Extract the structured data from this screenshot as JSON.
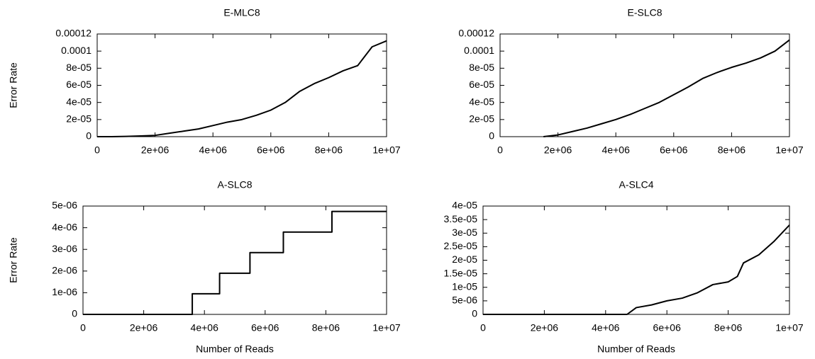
{
  "chart_data": [
    {
      "type": "line",
      "title": "E-MLC8",
      "ylabel": "Error Rate",
      "color": "#000000",
      "x": [
        0,
        500000,
        1000000,
        1500000,
        2000000,
        2500000,
        3000000,
        3500000,
        4000000,
        4500000,
        5000000,
        5500000,
        6000000,
        6500000,
        7000000,
        7500000,
        8000000,
        8500000,
        9000000,
        9500000,
        10000000
      ],
      "values": [
        0,
        0,
        3e-07,
        8e-07,
        1.5e-06,
        4e-06,
        6.5e-06,
        9e-06,
        1.3e-05,
        1.7e-05,
        2e-05,
        2.5e-05,
        3.1e-05,
        4e-05,
        5.3e-05,
        6.2e-05,
        6.9e-05,
        7.7e-05,
        8.3e-05,
        0.000105,
        0.000112
      ],
      "xlim": [
        0,
        10000000
      ],
      "ylim": [
        0,
        0.00012
      ],
      "xticks": [
        0,
        {
          "value": 2000000,
          "label": "2e+06"
        },
        {
          "value": 4000000,
          "label": "4e+06"
        },
        {
          "value": 6000000,
          "label": "6e+06"
        },
        {
          "value": 8000000,
          "label": "8e+06"
        },
        {
          "value": 10000000,
          "label": "1e+07"
        }
      ],
      "yticks": [
        0,
        {
          "value": 2e-05,
          "label": "2e-05"
        },
        {
          "value": 4e-05,
          "label": "4e-05"
        },
        {
          "value": 6e-05,
          "label": "6e-05"
        },
        {
          "value": 8e-05,
          "label": "8e-05"
        },
        0.0001,
        0.00012
      ]
    },
    {
      "type": "line",
      "title": "E-SLC8",
      "color": "#000000",
      "x": [
        1500000,
        2000000,
        2500000,
        3000000,
        3500000,
        4000000,
        4500000,
        5000000,
        5500000,
        6000000,
        6500000,
        7000000,
        7500000,
        8000000,
        8500000,
        9000000,
        9500000,
        10000000
      ],
      "values": [
        0,
        2e-06,
        6e-06,
        1e-05,
        1.5e-05,
        2e-05,
        2.6e-05,
        3.3e-05,
        4e-05,
        4.9e-05,
        5.8e-05,
        6.8e-05,
        7.5e-05,
        8.1e-05,
        8.6e-05,
        9.2e-05,
        0.0001,
        0.000113
      ],
      "xlim": [
        0,
        10000000
      ],
      "ylim": [
        0,
        0.00012
      ],
      "xticks": [
        0,
        {
          "value": 2000000,
          "label": "2e+06"
        },
        {
          "value": 4000000,
          "label": "4e+06"
        },
        {
          "value": 6000000,
          "label": "6e+06"
        },
        {
          "value": 8000000,
          "label": "8e+06"
        },
        {
          "value": 10000000,
          "label": "1e+07"
        }
      ],
      "yticks": [
        0,
        {
          "value": 2e-05,
          "label": "2e-05"
        },
        {
          "value": 4e-05,
          "label": "4e-05"
        },
        {
          "value": 6e-05,
          "label": "6e-05"
        },
        {
          "value": 8e-05,
          "label": "8e-05"
        },
        0.0001,
        0.00012
      ]
    },
    {
      "type": "line",
      "title": "A-SLC8",
      "ylabel": "Error Rate",
      "xlabel": "Number of Reads",
      "color": "#000000",
      "x": [
        0,
        3600000,
        3600000,
        4500000,
        4500000,
        5500000,
        5500000,
        6600000,
        6600000,
        8200000,
        8200000,
        10000000
      ],
      "values": [
        0,
        0,
        9.5e-07,
        9.5e-07,
        1.9e-06,
        1.9e-06,
        2.85e-06,
        2.85e-06,
        3.8e-06,
        3.8e-06,
        4.75e-06,
        4.75e-06
      ],
      "xlim": [
        0,
        10000000
      ],
      "ylim": [
        0,
        5e-06
      ],
      "xticks": [
        0,
        {
          "value": 2000000,
          "label": "2e+06"
        },
        {
          "value": 4000000,
          "label": "4e+06"
        },
        {
          "value": 6000000,
          "label": "6e+06"
        },
        {
          "value": 8000000,
          "label": "8e+06"
        },
        {
          "value": 10000000,
          "label": "1e+07"
        }
      ],
      "yticks": [
        0,
        {
          "value": 1e-06,
          "label": "1e-06"
        },
        {
          "value": 2e-06,
          "label": "2e-06"
        },
        {
          "value": 3e-06,
          "label": "3e-06"
        },
        {
          "value": 4e-06,
          "label": "4e-06"
        },
        {
          "value": 5e-06,
          "label": "5e-06"
        }
      ]
    },
    {
      "type": "line",
      "title": "A-SLC4",
      "xlabel": "Number of Reads",
      "color": "#000000",
      "x": [
        0,
        4700000,
        5000000,
        5500000,
        6000000,
        6500000,
        7000000,
        7500000,
        8000000,
        8300000,
        8500000,
        9000000,
        9500000,
        10000000
      ],
      "values": [
        0,
        0,
        2.5e-06,
        3.5e-06,
        5e-06,
        6e-06,
        8e-06,
        1.1e-05,
        1.2e-05,
        1.4e-05,
        1.9e-05,
        2.2e-05,
        2.7e-05,
        3.3e-05
      ],
      "xlim": [
        0,
        10000000
      ],
      "ylim": [
        0,
        4e-05
      ],
      "xticks": [
        0,
        {
          "value": 2000000,
          "label": "2e+06"
        },
        {
          "value": 4000000,
          "label": "4e+06"
        },
        {
          "value": 6000000,
          "label": "6e+06"
        },
        {
          "value": 8000000,
          "label": "8e+06"
        },
        {
          "value": 10000000,
          "label": "1e+07"
        }
      ],
      "yticks": [
        0,
        {
          "value": 5e-06,
          "label": "5e-06"
        },
        {
          "value": 1e-05,
          "label": "1e-05"
        },
        {
          "value": 1.5e-05,
          "label": "1.5e-05"
        },
        {
          "value": 2e-05,
          "label": "2e-05"
        },
        {
          "value": 2.5e-05,
          "label": "2.5e-05"
        },
        {
          "value": 3e-05,
          "label": "3e-05"
        },
        {
          "value": 3.5e-05,
          "label": "3.5e-05"
        },
        {
          "value": 4e-05,
          "label": "4e-05"
        }
      ]
    }
  ]
}
